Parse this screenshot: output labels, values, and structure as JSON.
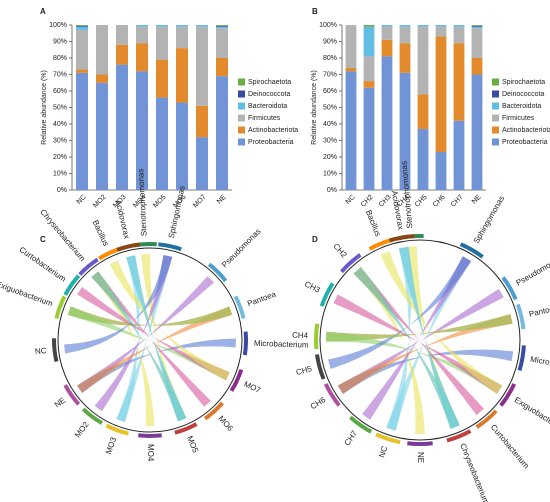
{
  "chart_data": [
    {
      "type": "stacked_bar",
      "panel": "A",
      "y_label": "Relative abundance (%)",
      "categories": [
        "NC",
        "MO2",
        "MO3",
        "MO4",
        "MO5",
        "MO6",
        "MO7",
        "NE"
      ],
      "series": [
        {
          "name": "Proteobacteria",
          "color": "#7094d6",
          "values": [
            71,
            65,
            76,
            72,
            56,
            53,
            32,
            69
          ]
        },
        {
          "name": "Actinobacteriota",
          "color": "#e38b2c",
          "values": [
            2,
            5,
            12,
            17,
            23,
            33,
            19,
            11
          ]
        },
        {
          "name": "Firmicutes",
          "color": "#b3b3b3",
          "values": [
            24,
            30,
            12,
            10,
            20,
            13,
            48,
            18
          ]
        },
        {
          "name": "Bacteroidota",
          "color": "#62bde3",
          "values": [
            2,
            0,
            0,
            1,
            1,
            1,
            1,
            1
          ]
        },
        {
          "name": "Deinococcota",
          "color": "#3b4aa3",
          "values": [
            0.5,
            0,
            0,
            0,
            0,
            0,
            0,
            0.5
          ]
        },
        {
          "name": "Spirochaetota",
          "color": "#6aad45",
          "values": [
            0.5,
            0,
            0,
            0,
            0,
            0,
            0,
            0.5
          ]
        }
      ],
      "ylim": [
        0,
        100
      ],
      "yticks": [
        {
          "value": 0,
          "label": "0%"
        },
        {
          "value": 10,
          "label": "10%"
        },
        {
          "value": 20,
          "label": "20%"
        },
        {
          "value": 30,
          "label": "30%"
        },
        {
          "value": 40,
          "label": "40%"
        },
        {
          "value": 50,
          "label": "50%"
        },
        {
          "value": 60,
          "label": "60%"
        },
        {
          "value": 70,
          "label": "70%"
        },
        {
          "value": 80,
          "label": "80%"
        },
        {
          "value": 90,
          "label": "90%"
        },
        {
          "value": 100,
          "label": "100%"
        }
      ]
    },
    {
      "type": "stacked_bar",
      "panel": "B",
      "y_label": "Relative abundance (%)",
      "categories": [
        "NC",
        "CH2",
        "CH3",
        "CH4",
        "CH5",
        "CH6",
        "CH7",
        "NE"
      ],
      "series": [
        {
          "name": "Proteobacteria",
          "color": "#7094d6",
          "values": [
            72,
            62,
            81,
            71,
            37,
            23,
            42,
            70
          ]
        },
        {
          "name": "Actinobacteriota",
          "color": "#e38b2c",
          "values": [
            2,
            4,
            10,
            18,
            21,
            70,
            47,
            10
          ]
        },
        {
          "name": "Firmicutes",
          "color": "#b3b3b3",
          "values": [
            26,
            15,
            8,
            10,
            41,
            6,
            10,
            18
          ]
        },
        {
          "name": "Bacteroidota",
          "color": "#62bde3",
          "values": [
            0,
            18,
            1,
            1,
            1,
            1,
            1,
            1
          ]
        },
        {
          "name": "Deinococcota",
          "color": "#3b4aa3",
          "values": [
            0,
            0,
            0,
            0,
            0,
            0,
            0,
            0.5
          ]
        },
        {
          "name": "Spirochaetota",
          "color": "#6aad45",
          "values": [
            0,
            1,
            0,
            0,
            0,
            0,
            0,
            0.5
          ]
        }
      ],
      "ylim": [
        0,
        100
      ],
      "yticks": [
        {
          "value": 0,
          "label": "0%"
        },
        {
          "value": 10,
          "label": "10%"
        },
        {
          "value": 20,
          "label": "20%"
        },
        {
          "value": 30,
          "label": "30%"
        },
        {
          "value": 40,
          "label": "40%"
        },
        {
          "value": 50,
          "label": "50%"
        },
        {
          "value": 60,
          "label": "60%"
        },
        {
          "value": 70,
          "label": "70%"
        },
        {
          "value": 80,
          "label": "80%"
        },
        {
          "value": 90,
          "label": "90%"
        },
        {
          "value": 100,
          "label": "100%"
        }
      ]
    },
    {
      "type": "chord",
      "panel": "C",
      "labels": [
        "Stenotrophomonas",
        "Sphingomonas",
        "Pseudomonas",
        "Pantoea",
        "Microbacterium",
        "MO7",
        "MO6",
        "MO5",
        "MO4",
        "MO3",
        "MO2",
        "NE",
        "NC",
        "Exiguobacterium",
        "Curtobacterium",
        "Chryseobacterium",
        "Bacillus",
        "Acidovorax"
      ]
    },
    {
      "type": "chord",
      "panel": "D",
      "labels": [
        "Stenotrophomonas",
        "Sphingomonas",
        "Pseudomonas",
        "Pantoea",
        "Microbacterium",
        "Exiguobacterium",
        "Curtobacterium",
        "Chryseobacterium",
        "NE",
        "NC",
        "CH7",
        "CH6",
        "CH5",
        "CH4",
        "CH3",
        "CH2",
        "Bacillus",
        "Acidovorax"
      ]
    }
  ]
}
